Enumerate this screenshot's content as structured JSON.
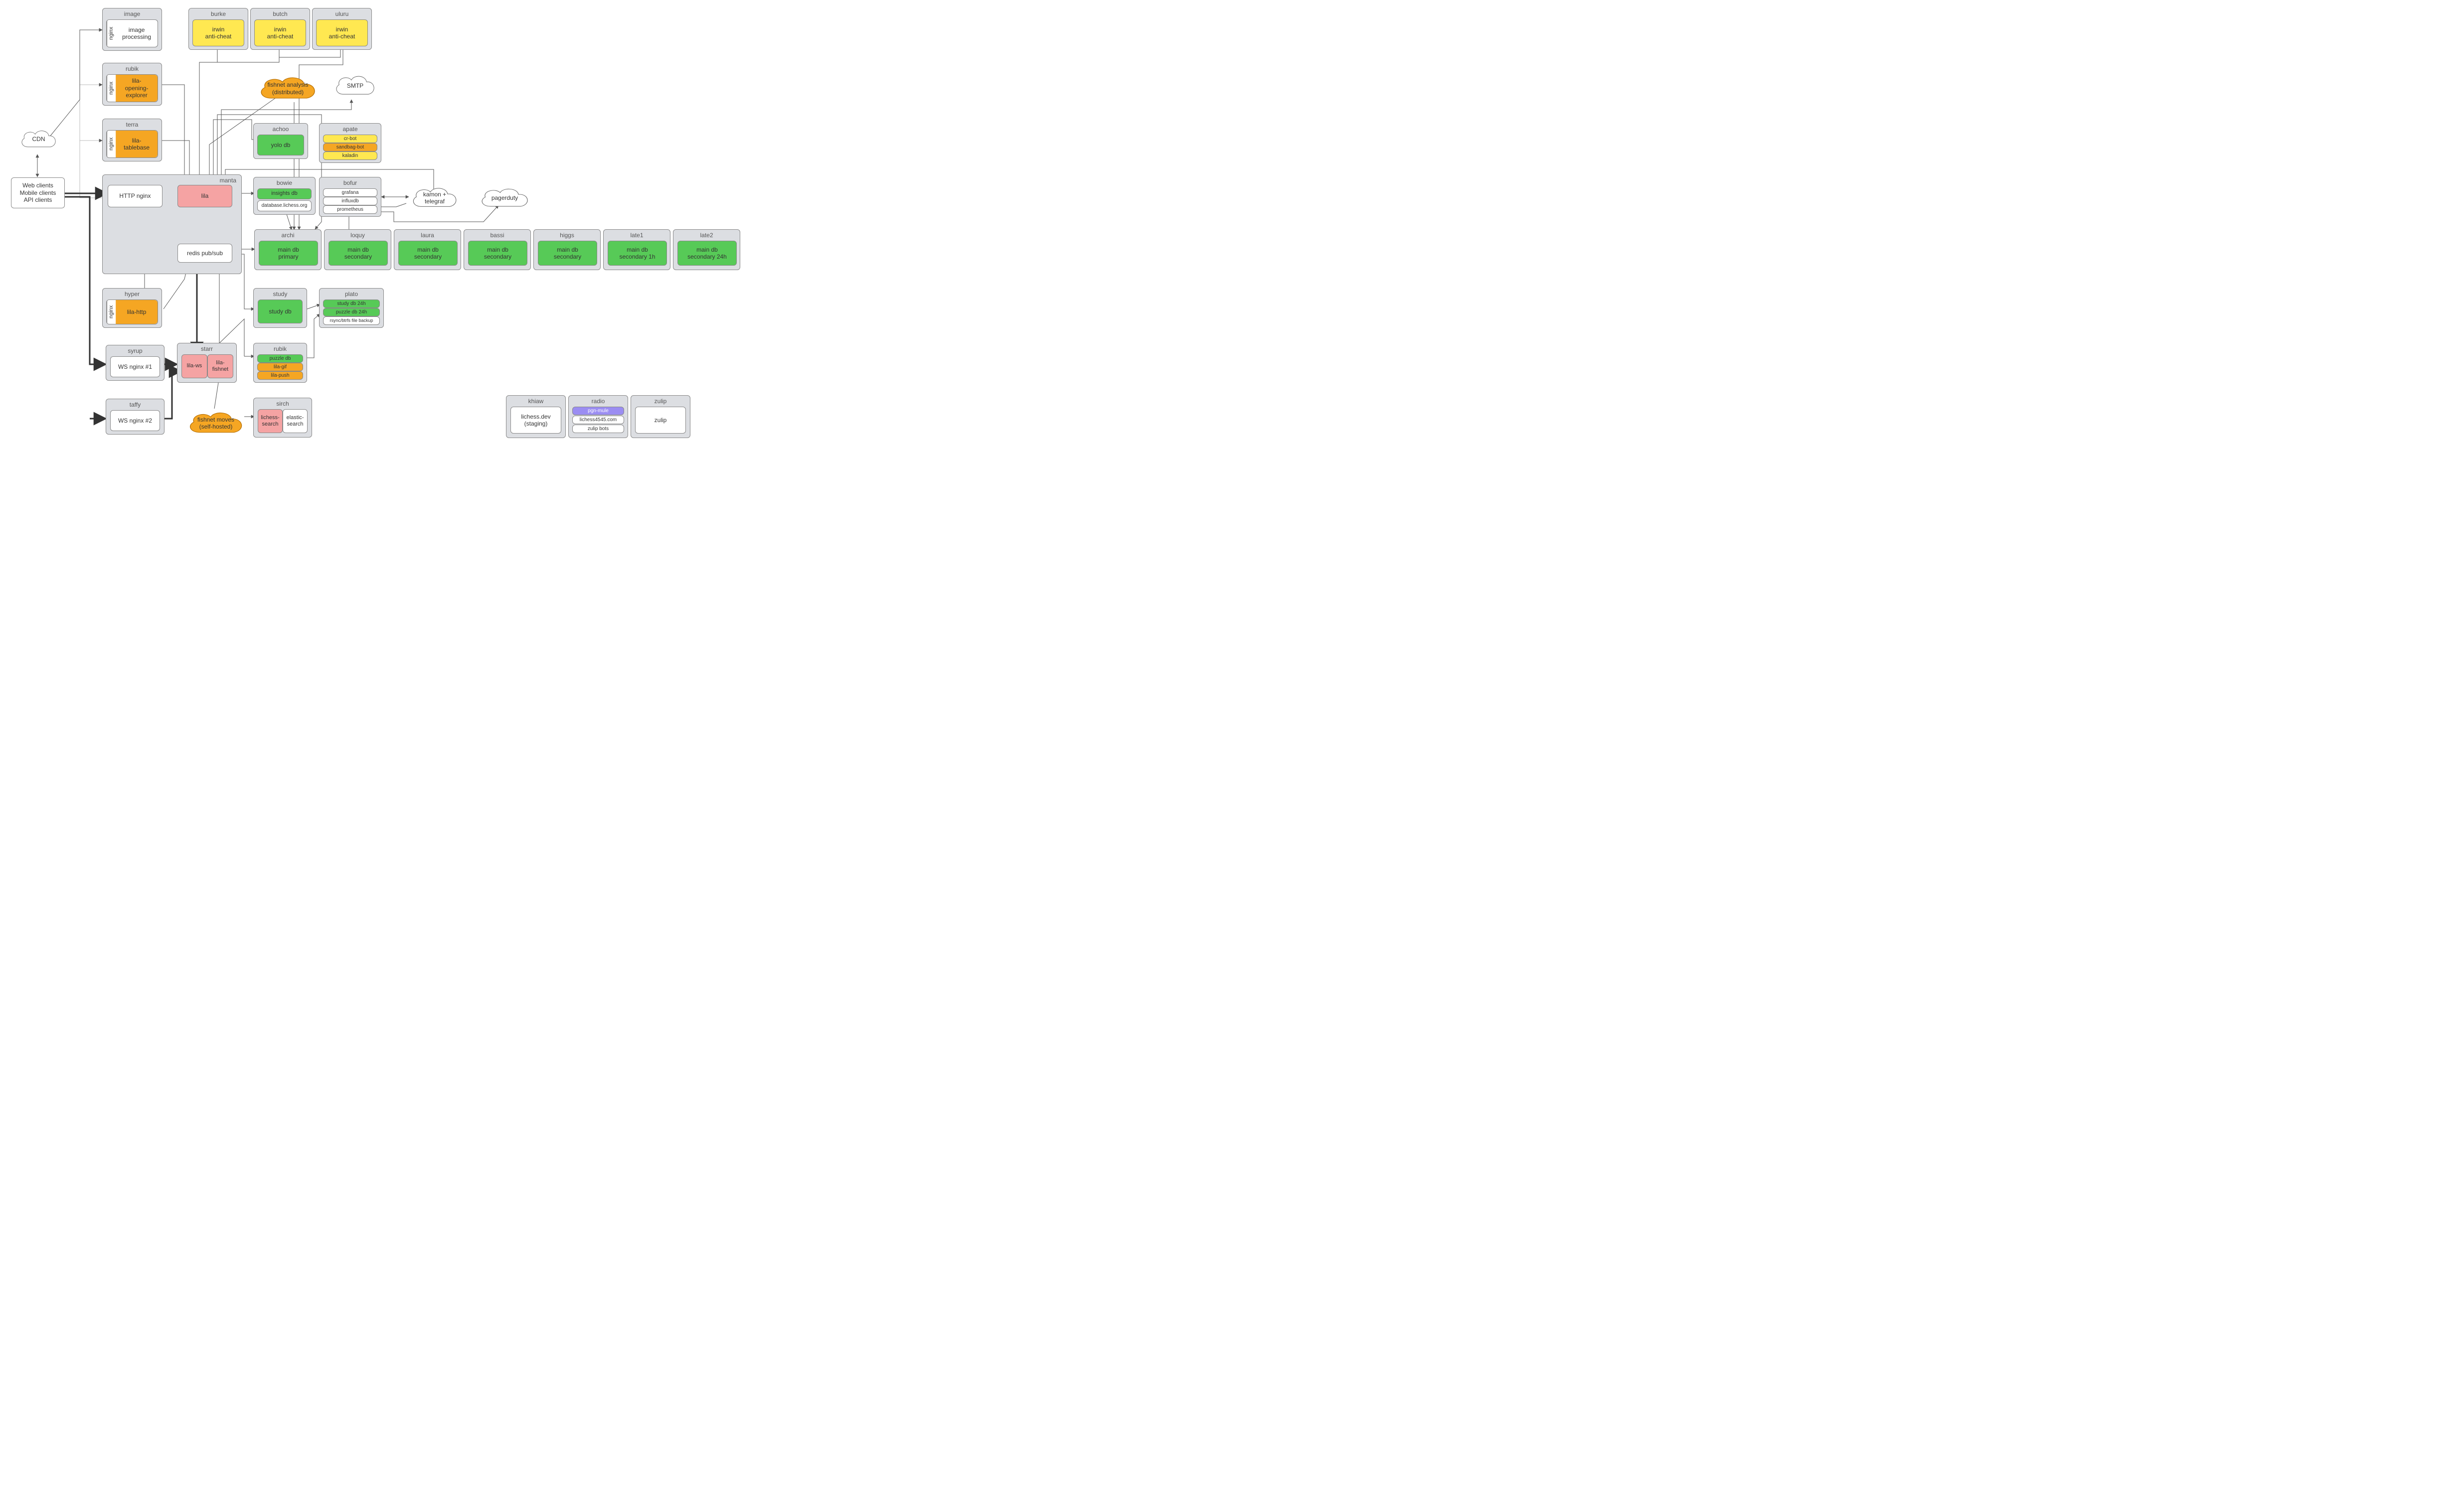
{
  "colors": {
    "container_bg": "#dcdee2",
    "white": "#ffffff",
    "yellow": "#ffe851",
    "orange": "#f5a623",
    "green": "#57ca57",
    "pink": "#f5a3a3",
    "purple": "#9b8df2",
    "cloud_orange": "#f5a623",
    "edge_default": "#555555"
  },
  "clients_box": {
    "label_line1": "Web clients",
    "label_line2": "Mobile clients",
    "label_line3": "API clients"
  },
  "clouds": {
    "cdn": {
      "label": "CDN"
    },
    "smtp": {
      "label": "SMTP"
    },
    "fishnet_an": {
      "label": "fishnet analysis\n(distributed)"
    },
    "fishnet_mv": {
      "label": "fishnet moves\n(self-hosted)"
    },
    "kamon": {
      "label": "kamon +\ntelegraf"
    },
    "pagerduty": {
      "label": "pagerduty"
    }
  },
  "hosts": {
    "image": {
      "title": "image",
      "nginx": "nginx",
      "label": "image\nprocessing",
      "color": "white"
    },
    "rubik1": {
      "title": "rubik",
      "nginx": "nginx",
      "label": "lila-\nopening-\nexplorer",
      "color": "orange"
    },
    "terra": {
      "title": "terra",
      "nginx": "nginx",
      "label": "lila-\ntablebase",
      "color": "orange"
    },
    "hyper": {
      "title": "hyper",
      "nginx": "nginx",
      "label": "lila-http",
      "color": "orange"
    },
    "burke": {
      "title": "burke",
      "label": "irwin\nanti-cheat",
      "color": "yellow"
    },
    "butch": {
      "title": "butch",
      "label": "irwin\nanti-cheat",
      "color": "yellow"
    },
    "uluru": {
      "title": "uluru",
      "label": "irwin\nanti-cheat",
      "color": "yellow"
    },
    "achoo": {
      "title": "achoo",
      "label": "yolo db",
      "color": "green"
    },
    "apate": {
      "title": "apate",
      "items": [
        {
          "label": "cr-bot",
          "color": "yellow"
        },
        {
          "label": "sandbag-bot",
          "color": "orange"
        },
        {
          "label": "kaladin",
          "color": "yellow"
        }
      ]
    },
    "bowie": {
      "title": "bowie",
      "items": [
        {
          "label": "insights db",
          "color": "green"
        },
        {
          "label": "database.lichess.org",
          "color": "white"
        }
      ]
    },
    "bofur": {
      "title": "bofur",
      "items": [
        {
          "label": "grafana",
          "color": "white"
        },
        {
          "label": "influxdb",
          "color": "white"
        },
        {
          "label": "prometheus",
          "color": "white"
        }
      ]
    },
    "manta": {
      "title": "manta",
      "http": {
        "label": "HTTP nginx",
        "color": "white"
      },
      "lila": {
        "label": "lila",
        "color": "pink"
      },
      "redis": {
        "label": "redis pub/sub",
        "color": "white"
      }
    },
    "syrup": {
      "title": "syrup",
      "label": "WS nginx #1",
      "color": "white"
    },
    "taffy": {
      "title": "taffy",
      "label": "WS nginx #2",
      "color": "white"
    },
    "starr": {
      "title": "starr",
      "ws": {
        "label": "lila-ws",
        "color": "pink"
      },
      "fishnet": {
        "label": "lila-\nfishnet",
        "color": "pink"
      }
    },
    "study": {
      "title": "study",
      "label": "study db",
      "color": "green"
    },
    "plato": {
      "title": "plato",
      "items": [
        {
          "label": "study db 24h",
          "color": "green"
        },
        {
          "label": "puzzle db 24h",
          "color": "green"
        },
        {
          "label": "rsync/btrfs file backup",
          "color": "white"
        }
      ]
    },
    "rubik2": {
      "title": "rubik",
      "items": [
        {
          "label": "puzzle db",
          "color": "green"
        },
        {
          "label": "lila-gif",
          "color": "orange"
        },
        {
          "label": "lila-push",
          "color": "orange"
        }
      ]
    },
    "sirch": {
      "title": "sirch",
      "a": {
        "label": "lichess-\nsearch",
        "color": "pink"
      },
      "b": {
        "label": "elastic-\nsearch",
        "color": "white"
      }
    },
    "db_row": [
      {
        "title": "archi",
        "label": "main db\nprimary"
      },
      {
        "title": "loquy",
        "label": "main db\nsecondary"
      },
      {
        "title": "laura",
        "label": "main db\nsecondary"
      },
      {
        "title": "bassi",
        "label": "main db\nsecondary"
      },
      {
        "title": "higgs",
        "label": "main db\nsecondary"
      },
      {
        "title": "late1",
        "label": "main db\nsecondary 1h"
      },
      {
        "title": "late2",
        "label": "main db\nsecondary 24h"
      }
    ],
    "khiaw": {
      "title": "khiaw",
      "label": "lichess.dev\n(staging)",
      "color": "white"
    },
    "radio": {
      "title": "radio",
      "items": [
        {
          "label": "pgn-mule",
          "color": "purple"
        },
        {
          "label": "lichess4545.com",
          "color": "white"
        },
        {
          "label": "zulip bots",
          "color": "white"
        }
      ]
    },
    "zulip": {
      "title": "zulip",
      "label": "zulip",
      "color": "white"
    }
  }
}
